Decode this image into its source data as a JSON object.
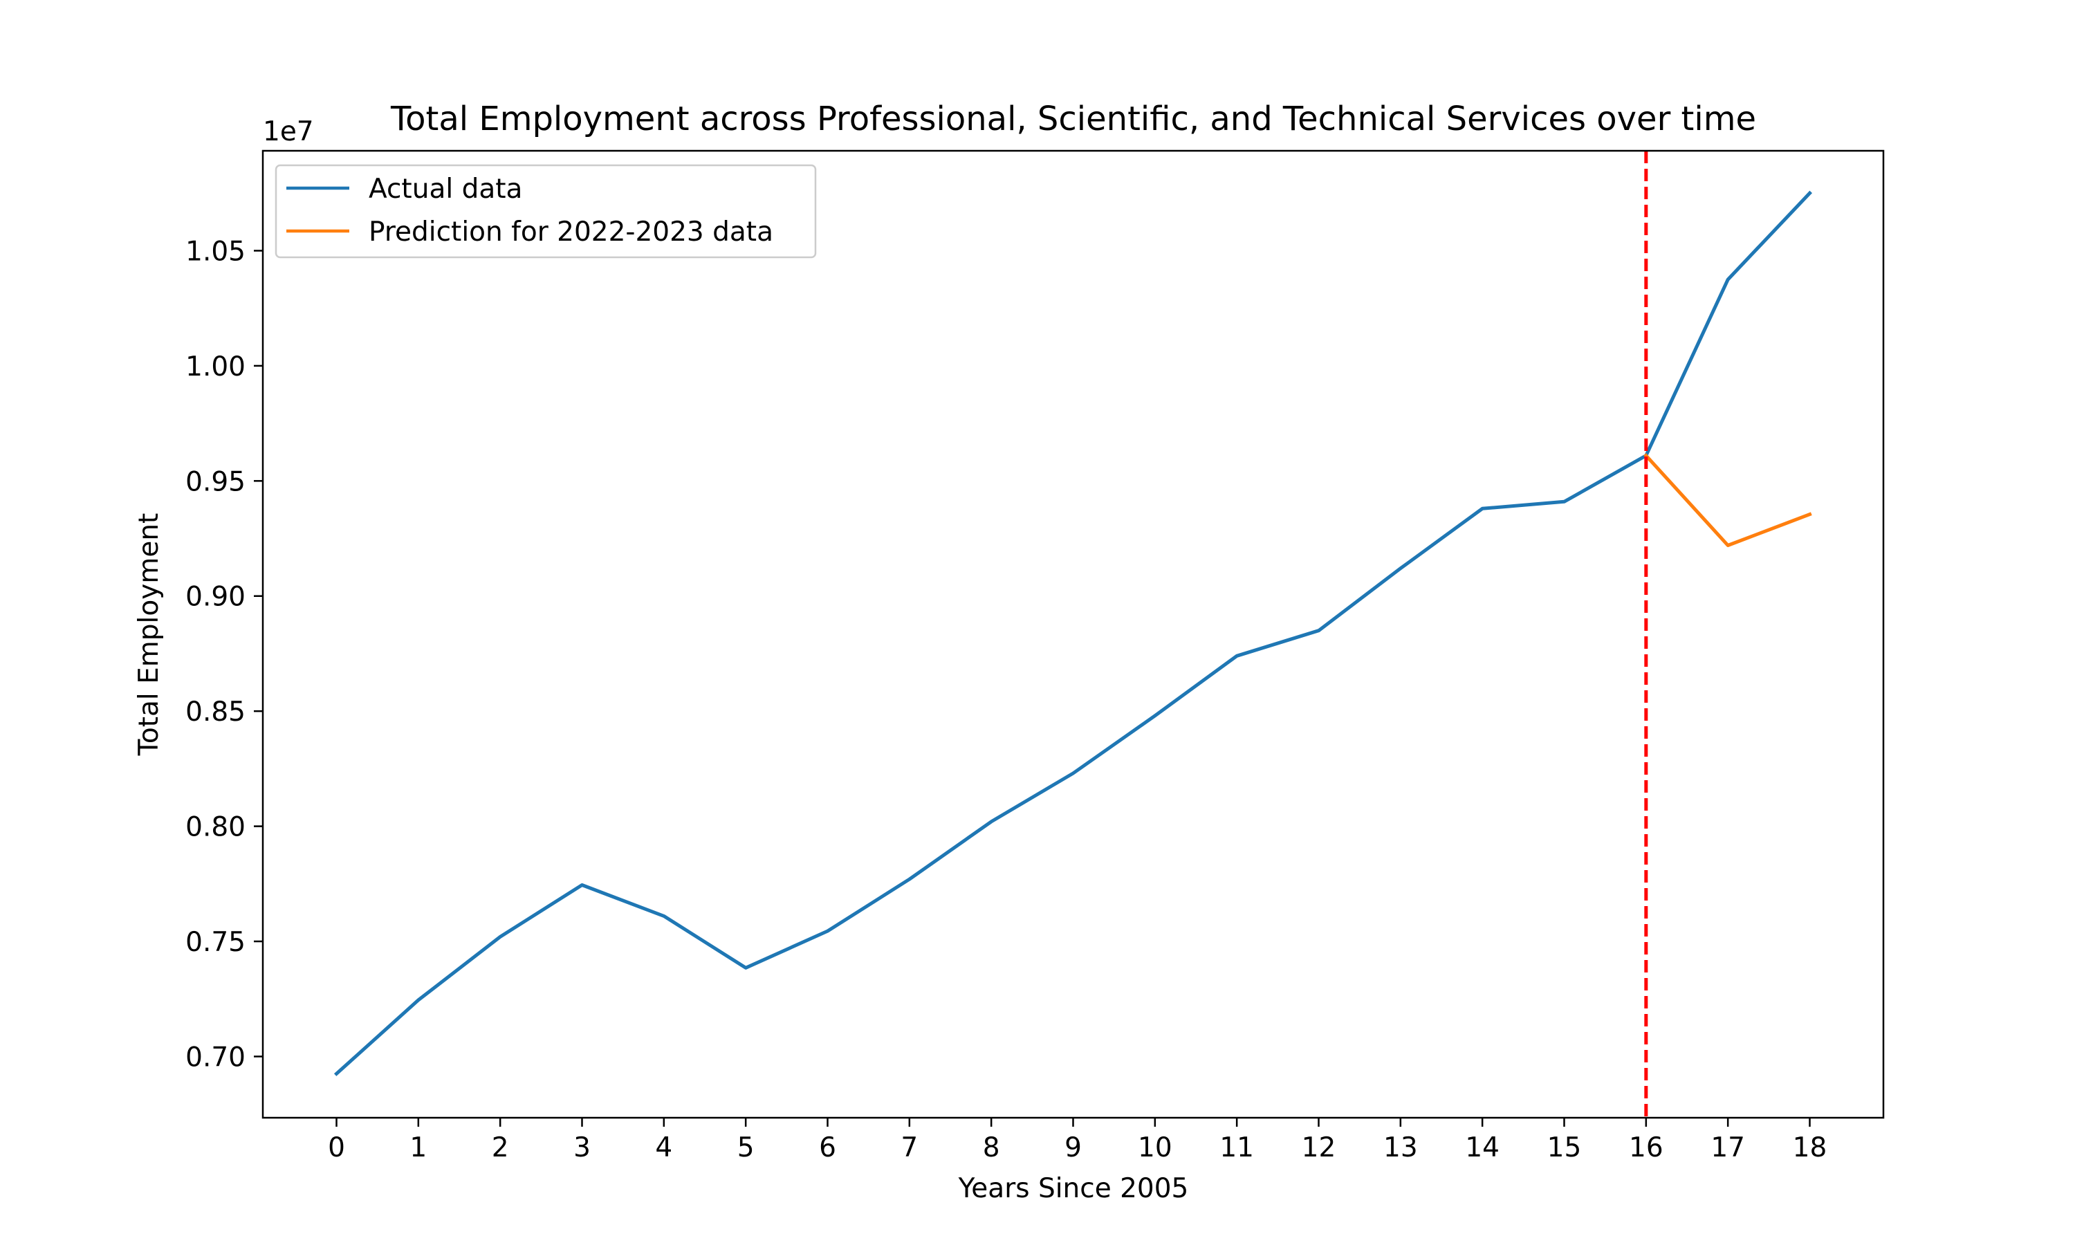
{
  "chart_data": {
    "type": "line",
    "title": "Total Employment across Professional, Scientific, and Technical Services over time",
    "xlabel": "Years Since 2005",
    "ylabel": "Total Employment",
    "y_offset_label": "1e7",
    "x_ticks": [
      0,
      1,
      2,
      3,
      4,
      5,
      6,
      7,
      8,
      9,
      10,
      11,
      12,
      13,
      14,
      15,
      16,
      17,
      18
    ],
    "y_ticks": [
      0.7,
      0.75,
      0.8,
      0.85,
      0.9,
      0.95,
      1.0,
      1.05
    ],
    "y_tick_labels": [
      "0.70",
      "0.75",
      "0.80",
      "0.85",
      "0.90",
      "0.95",
      "1.00",
      "1.05"
    ],
    "xlim": [
      -0.9,
      18.9
    ],
    "ylim": [
      0.6734,
      1.0934
    ],
    "grid": false,
    "legend_position": "upper-left",
    "series": [
      {
        "name": "Actual data",
        "color": "#1f77b4",
        "x": [
          0,
          1,
          2,
          3,
          4,
          5,
          6,
          7,
          8,
          9,
          10,
          11,
          12,
          13,
          14,
          15,
          16,
          17,
          18
        ],
        "y": [
          0.6925,
          0.7245,
          0.752,
          0.7745,
          0.761,
          0.7385,
          0.7545,
          0.777,
          0.802,
          0.823,
          0.848,
          0.874,
          0.885,
          0.912,
          0.938,
          0.941,
          0.961,
          1.0375,
          1.075
        ]
      },
      {
        "name": "Prediction for 2022-2023 data",
        "color": "#ff7f0e",
        "x": [
          16,
          17,
          18
        ],
        "y": [
          0.961,
          0.922,
          0.9355
        ]
      }
    ],
    "vline": {
      "x": 16,
      "color": "#ff0000",
      "style": "dashed"
    }
  }
}
